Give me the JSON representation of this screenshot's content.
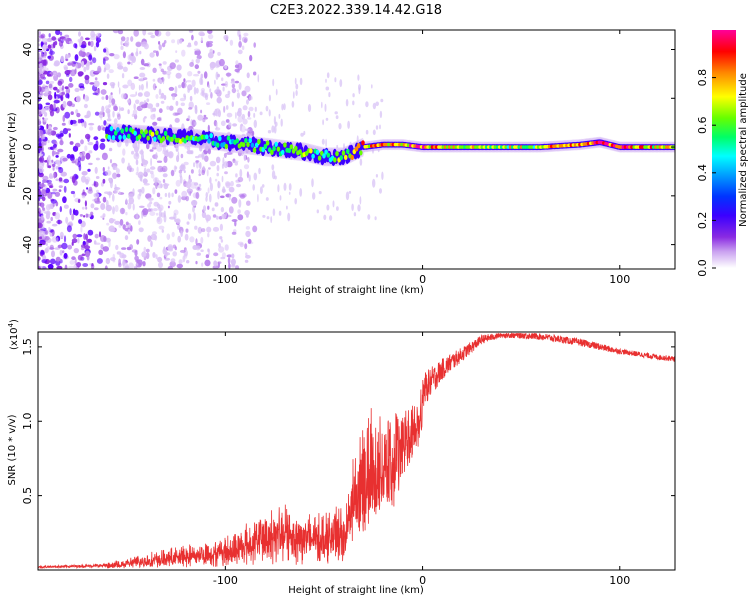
{
  "title": "C2E3.2022.339.14.42.G18",
  "chart_data": [
    {
      "type": "heatmap",
      "xlabel": "Height of straight line (km)",
      "ylabel": "Frequency (Hz)",
      "xlim": [
        -195,
        128
      ],
      "ylim": [
        -50,
        48
      ],
      "xticks": [
        "-100",
        "0",
        "100"
      ],
      "yticks": [
        "-40",
        "-20",
        "0",
        "20",
        "40"
      ],
      "colorbar": {
        "label": "Normalized spectral amplitude",
        "range": [
          0,
          1
        ],
        "ticks": [
          "0.0",
          "0.2",
          "0.4",
          "0.6",
          "0.8"
        ],
        "colors": [
          "#ffffff",
          "#c9a0f0",
          "#8a2be2",
          "#3b00ff",
          "#0033ff",
          "#00aaff",
          "#00ffff",
          "#00ff66",
          "#66ff00",
          "#ffff00",
          "#ff8800",
          "#ff0000",
          "#ff0099"
        ]
      },
      "ridge": {
        "x": [
          -160,
          -140,
          -120,
          -100,
          -80,
          -60,
          -50,
          -40,
          -30,
          -20,
          -10,
          0,
          20,
          40,
          60,
          80,
          90,
          100,
          128
        ],
        "frequency_hz": [
          6,
          5,
          4,
          2,
          0,
          -2,
          -4,
          -4,
          0,
          1,
          1,
          0,
          0,
          0,
          0,
          1,
          2,
          0,
          0
        ],
        "amplitude": [
          0.5,
          0.55,
          0.55,
          0.5,
          0.55,
          0.6,
          0.5,
          0.6,
          0.75,
          0.8,
          0.8,
          0.9,
          0.7,
          0.6,
          0.65,
          0.9,
          0.95,
          0.9,
          0.7
        ]
      }
    },
    {
      "type": "line",
      "xlabel": "Height of straight line (km)",
      "ylabel": "SNR (10 * v/v)",
      "scale_label": "(x10",
      "scale_exponent": "4",
      "xlim": [
        -195,
        128
      ],
      "ylim": [
        0,
        1.6
      ],
      "xticks": [
        "-100",
        "0",
        "100"
      ],
      "yticks": [
        "0.5",
        "1.0",
        "1.5"
      ],
      "color": "#e83030",
      "envelope": {
        "x": [
          -195,
          -160,
          -140,
          -120,
          -100,
          -80,
          -70,
          -60,
          -50,
          -40,
          -35,
          -30,
          -25,
          -20,
          -15,
          -10,
          -5,
          0,
          10,
          20,
          30,
          40,
          50,
          60,
          70,
          80,
          90,
          100,
          110,
          120,
          128
        ],
        "y": [
          0.02,
          0.03,
          0.07,
          0.1,
          0.12,
          0.2,
          0.22,
          0.2,
          0.22,
          0.3,
          0.8,
          1.0,
          1.05,
          1.05,
          1.0,
          1.1,
          1.05,
          1.2,
          1.35,
          1.45,
          1.55,
          1.58,
          1.58,
          1.57,
          1.55,
          1.53,
          1.5,
          1.47,
          1.45,
          1.43,
          1.42
        ],
        "noise": [
          0.01,
          0.02,
          0.05,
          0.08,
          0.12,
          0.22,
          0.25,
          0.22,
          0.2,
          0.2,
          0.6,
          0.7,
          0.7,
          0.65,
          0.55,
          0.4,
          0.3,
          0.2,
          0.12,
          0.08,
          0.05,
          0.03,
          0.04,
          0.04,
          0.04,
          0.04,
          0.04,
          0.03,
          0.03,
          0.03,
          0.03
        ]
      }
    }
  ]
}
